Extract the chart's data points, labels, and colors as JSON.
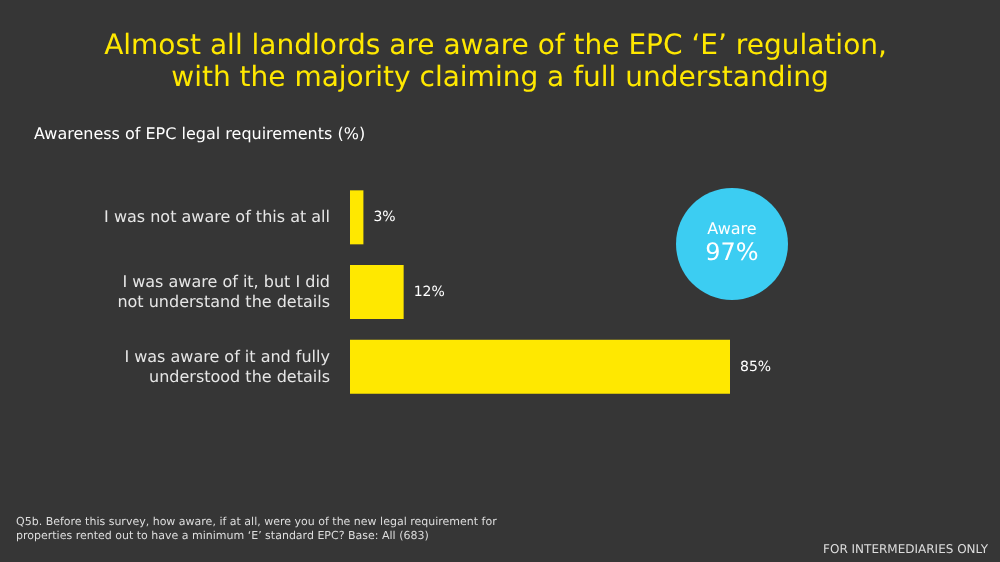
{
  "chart_data": {
    "type": "bar",
    "orientation": "horizontal",
    "title": "Almost all landlords are aware of the EPC ‘E’ regulation, with the majority claiming a full understanding",
    "subtitle": "Awareness of EPC legal requirements (%)",
    "categories": [
      "I was not aware of this at all",
      "I was aware of it, but I did not understand the details",
      "I was aware of it and fully understood the details"
    ],
    "values": [
      3,
      12,
      85
    ],
    "value_labels": [
      "3%",
      "12%",
      "85%"
    ],
    "color": "#ffe800",
    "annotations": [
      "Aware\n97%",
      "Q5b. Before this survey, how aware, if at all, were you of the new legal requirement for properties rented out to have a minimum ‘E’ standard EPC? Base: All (683)",
      "FOR INTERMEDIARIES ONLY"
    ],
    "data_labels": false
  }
}
